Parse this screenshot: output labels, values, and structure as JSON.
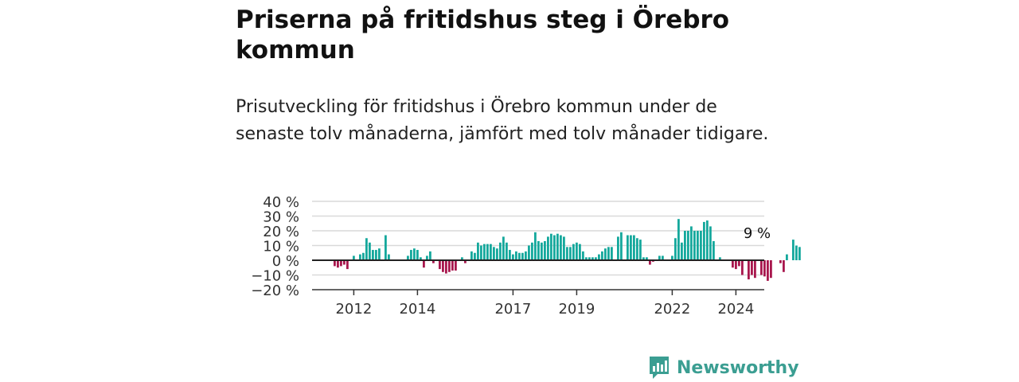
{
  "header": {
    "title": "Priserna på fritidshus steg i Örebro kommun",
    "subtitle": "Prisutveckling för fritidshus i Örebro kommun under de senaste tolv månaderna, jämfört med tolv månader tidigare."
  },
  "brand": {
    "name": "Newsworthy",
    "color": "#3b9e92"
  },
  "colors": {
    "positive": "#15a89c",
    "negative": "#a8174d",
    "grid": "#d9d9d9",
    "axis": "#333333"
  },
  "chart_data": {
    "type": "bar",
    "title": "",
    "xlabel": "",
    "ylabel": "",
    "ylim": [
      -20,
      40
    ],
    "y_ticks": [
      "40 %",
      "30 %",
      "20 %",
      "10 %",
      "0 %",
      "−10 %",
      "−20 %"
    ],
    "y_tick_values": [
      40,
      30,
      20,
      10,
      0,
      -10,
      -20
    ],
    "x_ticks": [
      "2012",
      "2014",
      "2017",
      "2019",
      "2022",
      "2024"
    ],
    "x_tick_positions": [
      6,
      26,
      56,
      76,
      106,
      126
    ],
    "annotation": {
      "text": "9 %",
      "index": 133
    },
    "values": [
      -4,
      -5,
      -4,
      -3,
      -6,
      0,
      3,
      0,
      4,
      5,
      15,
      12,
      7,
      7,
      8,
      0,
      17,
      4,
      0,
      0,
      0,
      0,
      0,
      3,
      7,
      8,
      7,
      2,
      -5,
      3,
      6,
      -2,
      0,
      -6,
      -8,
      -9,
      -8,
      -7,
      -7,
      0,
      2,
      -2,
      0,
      6,
      5,
      12,
      10,
      11,
      11,
      11,
      9,
      8,
      12,
      16,
      12,
      7,
      4,
      6,
      5,
      5,
      6,
      10,
      12,
      19,
      13,
      12,
      13,
      16,
      18,
      17,
      18,
      17,
      16,
      9,
      9,
      11,
      12,
      11,
      6,
      2,
      2,
      2,
      2,
      4,
      6,
      8,
      9,
      9,
      0,
      16,
      19,
      0,
      17,
      17,
      17,
      15,
      14,
      2,
      2,
      -3,
      -1,
      0,
      3,
      3,
      0,
      0,
      3,
      15,
      28,
      12,
      20,
      20,
      23,
      20,
      20,
      20,
      26,
      27,
      23,
      13,
      0,
      2,
      0,
      0,
      0,
      -5,
      -6,
      -4,
      -10,
      0,
      -13,
      -10,
      -12,
      0,
      -10,
      -11,
      -14,
      -12,
      0,
      0,
      -2,
      -8,
      4,
      0,
      14,
      10,
      9
    ]
  }
}
